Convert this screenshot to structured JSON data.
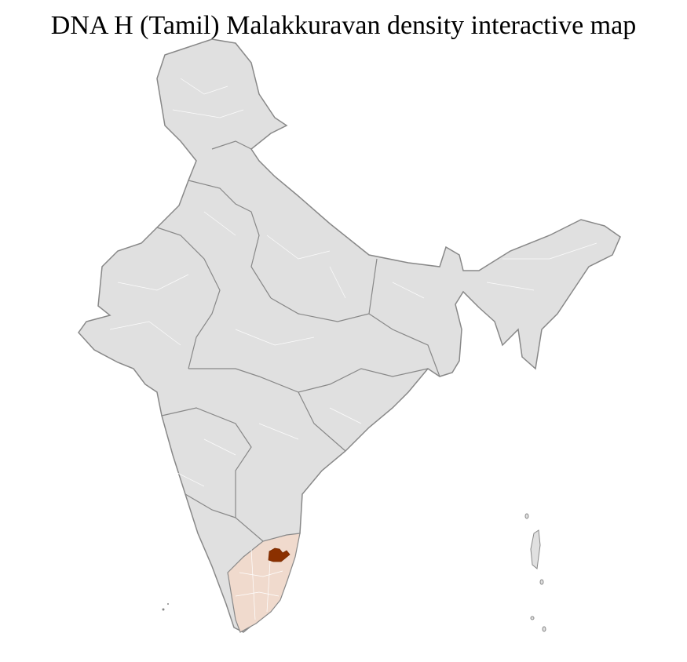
{
  "title": "DNA H (Tamil) Malakkuravan density interactive map",
  "colors": {
    "default_fill": "#e0e0e0",
    "border": "#888888",
    "district_border": "#ffffff",
    "state_highlight": "#f0dacd",
    "district_highlight": "#8b3000"
  },
  "regions": {
    "highlighted_state": "Tamil Nadu",
    "highlighted_district_level": "max"
  }
}
